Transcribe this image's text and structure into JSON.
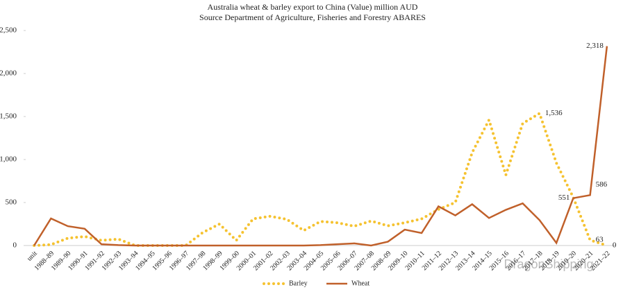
{
  "chart_data": {
    "type": "line",
    "title": "Australia wheat & barley export to China (Value) million AUD",
    "subtitle": "Source Department of Agriculture, Fisheries and Forestry ABARES",
    "annotation": "DragonShipping",
    "categories": [
      "unit",
      "1988–89",
      "1989–90",
      "1990–91",
      "1991–92",
      "1992–93",
      "1993–94",
      "1994–95",
      "1995–96",
      "1996–97",
      "1997–98",
      "1998–99",
      "1999–00",
      "2000–01",
      "2001–02",
      "2002–03",
      "2003–04",
      "2004–05",
      "2005–06",
      "2006–07",
      "2007–08",
      "2008–09",
      "2009–10",
      "2010–11",
      "2011–12",
      "2012–13",
      "2013–14",
      "2014–15",
      "2015–16",
      "2016–17",
      "2017–18",
      "2018–19",
      "2019–20",
      "2020–21",
      "2021–22"
    ],
    "series": [
      {
        "name": "Barley",
        "color": "#f5c230",
        "dashed": true,
        "values": [
          0,
          10,
          85,
          105,
          60,
          75,
          0,
          0,
          0,
          0,
          150,
          250,
          60,
          310,
          340,
          305,
          175,
          280,
          265,
          225,
          285,
          230,
          265,
          310,
          420,
          500,
          1080,
          1460,
          820,
          1420,
          1536,
          960,
          560,
          63,
          0
        ],
        "value_labels": [
          null,
          null,
          null,
          null,
          null,
          null,
          null,
          null,
          null,
          null,
          null,
          null,
          null,
          null,
          null,
          null,
          null,
          null,
          null,
          null,
          null,
          null,
          null,
          null,
          null,
          null,
          null,
          null,
          null,
          null,
          "1,536",
          null,
          null,
          "63",
          "0"
        ]
      },
      {
        "name": "Wheat",
        "color": "#c0602a",
        "dashed": false,
        "values": [
          0,
          315,
          225,
          195,
          15,
          5,
          0,
          0,
          0,
          0,
          0,
          0,
          0,
          0,
          0,
          0,
          0,
          5,
          15,
          25,
          0,
          45,
          185,
          145,
          455,
          350,
          480,
          320,
          415,
          490,
          295,
          30,
          551,
          586,
          2318
        ],
        "value_labels": [
          null,
          null,
          null,
          null,
          null,
          null,
          null,
          null,
          null,
          null,
          null,
          null,
          null,
          null,
          null,
          null,
          null,
          null,
          null,
          null,
          null,
          null,
          null,
          null,
          null,
          null,
          null,
          null,
          null,
          null,
          null,
          null,
          "551",
          "586",
          "2,318"
        ]
      }
    ],
    "ylim": [
      0,
      2500
    ],
    "yticks": [
      0,
      500,
      {
        "value": 1000,
        "label": "1,000"
      },
      {
        "value": 1500,
        "label": "1,500"
      },
      {
        "value": 2000,
        "label": "2,000"
      },
      {
        "value": 2500,
        "label": "2,500"
      }
    ],
    "grid": false,
    "legend": "bottom"
  }
}
